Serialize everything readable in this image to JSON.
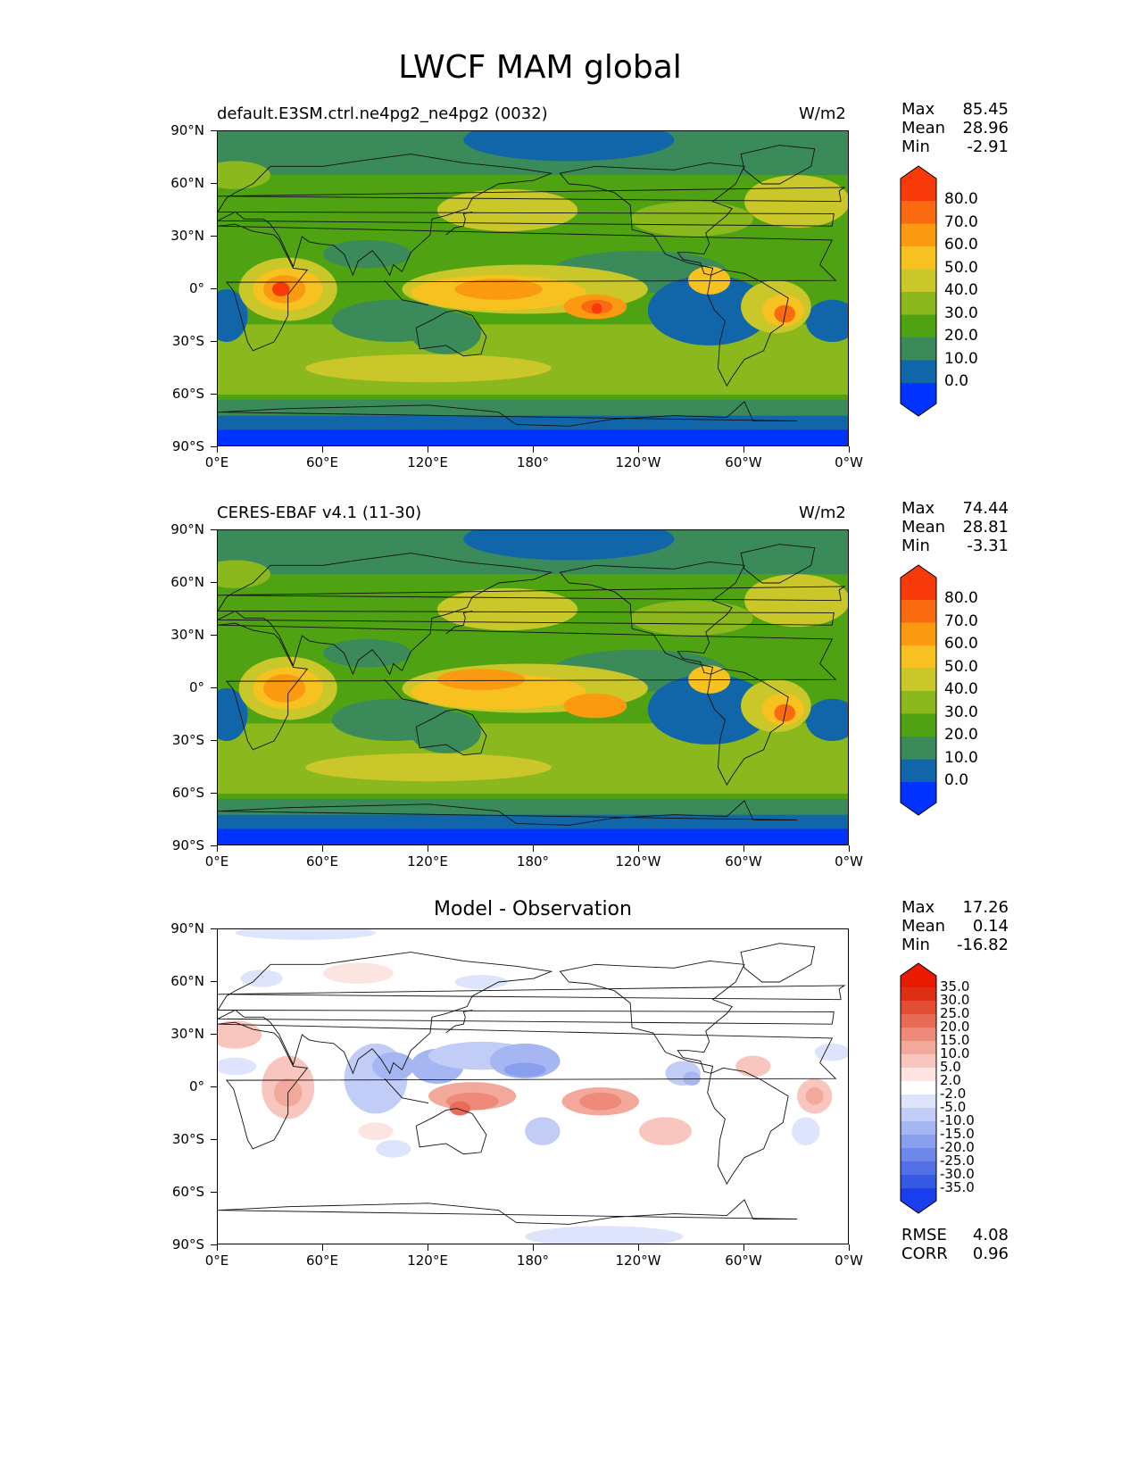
{
  "title": "LWCF MAM global",
  "panels": [
    {
      "label_left": "default.E3SM.ctrl.ne4pg2_ne4pg2 (0032)",
      "units": "W/m2",
      "stats": {
        "max_label": "Max",
        "max": "85.45",
        "mean_label": "Mean",
        "mean": "28.96",
        "min_label": "Min",
        "min": "-2.91"
      },
      "colorbar_labels": [
        "80.0",
        "70.0",
        "60.0",
        "50.0",
        "40.0",
        "30.0",
        "20.0",
        "10.0",
        "0.0"
      ]
    },
    {
      "label_left": "CERES-EBAF v4.1 (11-30)",
      "units": "W/m2",
      "stats": {
        "max_label": "Max",
        "max": "74.44",
        "mean_label": "Mean",
        "mean": "28.81",
        "min_label": "Min",
        "min": "-3.31"
      },
      "colorbar_labels": [
        "80.0",
        "70.0",
        "60.0",
        "50.0",
        "40.0",
        "30.0",
        "20.0",
        "10.0",
        "0.0"
      ]
    },
    {
      "label_center": "Model - Observation",
      "stats": {
        "max_label": "Max",
        "max": "17.26",
        "mean_label": "Mean",
        "mean": "0.14",
        "min_label": "Min",
        "min": "-16.82"
      },
      "metrics": {
        "rmse_label": "RMSE",
        "rmse": "4.08",
        "corr_label": "CORR",
        "corr": "0.96"
      },
      "colorbar_labels": [
        "35.0",
        "30.0",
        "25.0",
        "20.0",
        "15.0",
        "10.0",
        "5.0",
        "2.0",
        "-2.0",
        "-5.0",
        "-10.0",
        "-15.0",
        "-20.0",
        "-25.0",
        "-30.0",
        "-35.0"
      ]
    }
  ],
  "axes": {
    "lat_ticks": [
      "90°N",
      "60°N",
      "30°N",
      "0°",
      "30°S",
      "60°S",
      "90°S"
    ],
    "lon_ticks": [
      "0°E",
      "60°E",
      "120°E",
      "180°",
      "120°W",
      "60°W",
      "0°W"
    ]
  },
  "colors": {
    "main_levels": [
      "#0033ff",
      "#1166aa",
      "#3a8a5a",
      "#4fa312",
      "#8ab81d",
      "#c9c72a",
      "#f7c120",
      "#fb9a10",
      "#fa6a10",
      "#f83a0a"
    ],
    "diff_pos": [
      "#fce4e0",
      "#f8c6be",
      "#f3a89c",
      "#ee8a7a",
      "#e86b58",
      "#e24d36",
      "#dc2f14"
    ],
    "diff_neg": [
      "#dde4fb",
      "#c2cdf7",
      "#a6b6f3",
      "#8a9eef",
      "#6e87eb",
      "#526fe7",
      "#3658e3"
    ]
  },
  "chart_data": [
    {
      "type": "heatmap",
      "title": "default.E3SM.ctrl.ne4pg2_ne4pg2 (0032)",
      "units": "W/m2",
      "xlabel": "",
      "ylabel": "",
      "xlim": [
        0,
        360
      ],
      "ylim": [
        -90,
        90
      ],
      "levels": [
        0,
        10,
        20,
        30,
        40,
        50,
        60,
        70,
        80
      ],
      "features": [
        {
          "name": "africa max",
          "lon": 38,
          "lat": 0,
          "value": 80
        },
        {
          "name": "central pacific max",
          "lon": 216,
          "lat": -10,
          "value": 85
        },
        {
          "name": "amazon max",
          "lon": 323,
          "lat": -15,
          "value": 72
        },
        {
          "name": "west pacific band",
          "lon": 155,
          "lat": 0,
          "value": 62
        },
        {
          "name": "southeast pacific min",
          "lon": 270,
          "lat": -15,
          "value": 8
        },
        {
          "name": "antarctic",
          "lon": 180,
          "lat": -85,
          "value": -2.9
        }
      ],
      "stats": {
        "max": 85.45,
        "mean": 28.96,
        "min": -2.91
      }
    },
    {
      "type": "heatmap",
      "title": "CERES-EBAF v4.1 (11-30)",
      "units": "W/m2",
      "xlabel": "",
      "ylabel": "",
      "xlim": [
        0,
        360
      ],
      "ylim": [
        -90,
        90
      ],
      "levels": [
        0,
        10,
        20,
        30,
        40,
        50,
        60,
        70,
        80
      ],
      "features": [
        {
          "name": "africa max",
          "lon": 38,
          "lat": 0,
          "value": 66
        },
        {
          "name": "central pacific max",
          "lon": 215,
          "lat": -10,
          "value": 65
        },
        {
          "name": "amazon max",
          "lon": 323,
          "lat": -13,
          "value": 74
        },
        {
          "name": "west pacific band",
          "lon": 145,
          "lat": 3,
          "value": 62
        },
        {
          "name": "southeast pacific min",
          "lon": 272,
          "lat": -15,
          "value": 6
        },
        {
          "name": "antarctic",
          "lon": 180,
          "lat": -85,
          "value": -3.3
        }
      ],
      "stats": {
        "max": 74.44,
        "mean": 28.81,
        "min": -3.31
      }
    },
    {
      "type": "heatmap",
      "title": "Model - Observation",
      "xlabel": "",
      "ylabel": "",
      "xlim": [
        0,
        360
      ],
      "ylim": [
        -90,
        90
      ],
      "levels": [
        -35,
        -30,
        -25,
        -20,
        -15,
        -10,
        -5,
        -2,
        2,
        5,
        10,
        15,
        20,
        25,
        30,
        35
      ],
      "features": [
        {
          "name": "pacific positive",
          "lon": 145,
          "lat": -5,
          "value": 17
        },
        {
          "name": "central pacific positive",
          "lon": 220,
          "lat": -8,
          "value": 14
        },
        {
          "name": "maritime continent negative",
          "lon": 125,
          "lat": 12,
          "value": -16
        },
        {
          "name": "north pacific negative",
          "lon": 170,
          "lat": 15,
          "value": -12
        },
        {
          "name": "africa positive",
          "lon": 40,
          "lat": -5,
          "value": 10
        },
        {
          "name": "atlantic positive",
          "lon": 340,
          "lat": -5,
          "value": 10
        }
      ],
      "stats": {
        "max": 17.26,
        "mean": 0.14,
        "min": -16.82,
        "rmse": 4.08,
        "corr": 0.96
      }
    }
  ]
}
